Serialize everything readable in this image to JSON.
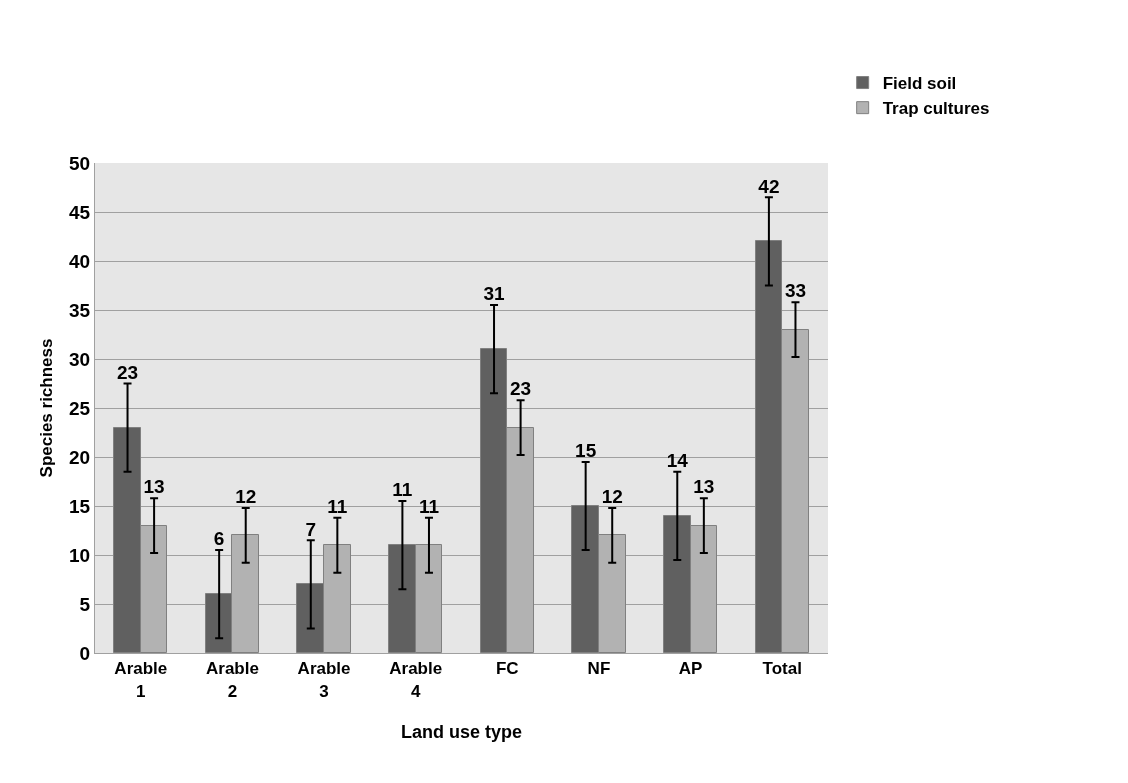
{
  "chart_data": {
    "type": "bar",
    "xlabel": "Land use type",
    "ylabel": "Species richness",
    "categories": [
      "Arable 1",
      "Arable 2",
      "Arable 3",
      "Arable 4",
      "FC",
      "NF",
      "AP",
      "Total"
    ],
    "series": [
      {
        "name": "Field soil",
        "color": "#606060",
        "values": [
          23,
          6,
          7,
          11,
          31,
          15,
          14,
          42
        ],
        "errors": [
          4.5,
          4.5,
          4.5,
          4.5,
          4.5,
          4.5,
          4.5,
          4.5
        ]
      },
      {
        "name": "Trap cultures",
        "color": "#b2b2b2",
        "values": [
          13,
          12,
          11,
          11,
          23,
          12,
          13,
          33
        ],
        "errors": [
          2.8,
          2.8,
          2.8,
          2.8,
          2.8,
          2.8,
          2.8,
          2.8
        ]
      }
    ],
    "ylim": [
      0,
      50
    ],
    "yticks": [
      0,
      5,
      10,
      15,
      20,
      25,
      30,
      35,
      40,
      45,
      50
    ],
    "grid": "y",
    "legend": "top right",
    "data_labels": true
  }
}
